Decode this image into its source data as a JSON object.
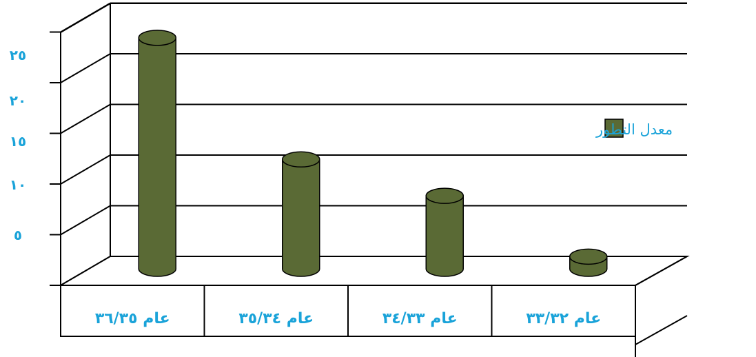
{
  "chart_data": {
    "type": "bar",
    "style": "3d-cylinder",
    "categories": [
      "عام ٣٦/٣٥",
      "عام ٣٥/٣٤",
      "عام ٣٤/٣٣",
      "عام ٣٣/٣٢"
    ],
    "series": [
      {
        "name": "معدل التطور",
        "values": [
          22.8,
          10.8,
          7.2,
          1.2
        ]
      }
    ],
    "y_ticks": [
      "٥",
      "١٠",
      "١٥",
      "٢٠",
      "٢٥"
    ],
    "ylim": [
      0,
      25
    ],
    "title": "",
    "xlabel": "",
    "ylabel": "",
    "grid": true,
    "legend_position": "right",
    "colors": {
      "bar_fill": "#5a6a35",
      "bar_stroke": "#000000",
      "tick_text": "#1aa3d9",
      "legend_text": "#1aa3d9",
      "grid": "#000000"
    }
  }
}
